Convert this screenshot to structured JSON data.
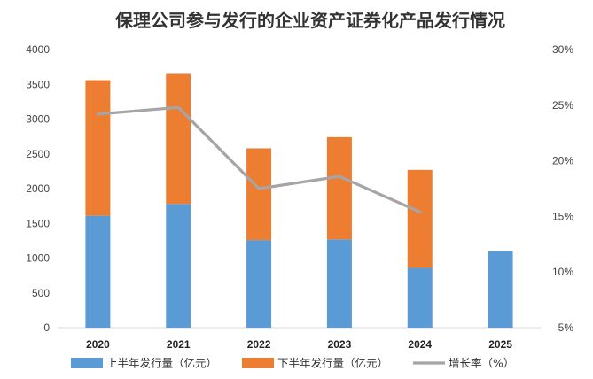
{
  "chart_data": {
    "type": "bar",
    "stacked": true,
    "title": "保理公司参与发行的企业资产证券化产品发行情况",
    "categories": [
      "2020",
      "2021",
      "2022",
      "2023",
      "2024",
      "2025"
    ],
    "series": [
      {
        "name": "上半年发行量（亿元）",
        "kind": "bar",
        "axis": "left",
        "color": "#5B9BD5",
        "values": [
          1610,
          1780,
          1260,
          1270,
          860,
          1100
        ]
      },
      {
        "name": "下半年发行量（亿元）",
        "kind": "bar",
        "axis": "left",
        "color": "#ED7D31",
        "values": [
          1950,
          1870,
          1320,
          1470,
          1410,
          null
        ]
      },
      {
        "name": "增长率（%）",
        "kind": "line",
        "axis": "right",
        "color": "#A5A5A5",
        "values": [
          24.2,
          24.8,
          17.5,
          18.6,
          15.4,
          null
        ]
      }
    ],
    "y_left": {
      "min": 0,
      "max": 4000,
      "step": 500,
      "ticks": [
        "0",
        "500",
        "1000",
        "1500",
        "2000",
        "2500",
        "3000",
        "3500",
        "4000"
      ]
    },
    "y_right": {
      "min": 5,
      "max": 30,
      "step": 5,
      "ticks": [
        "5%",
        "10%",
        "15%",
        "20%",
        "25%",
        "30%"
      ]
    },
    "legend_position": "bottom",
    "grid": false
  }
}
